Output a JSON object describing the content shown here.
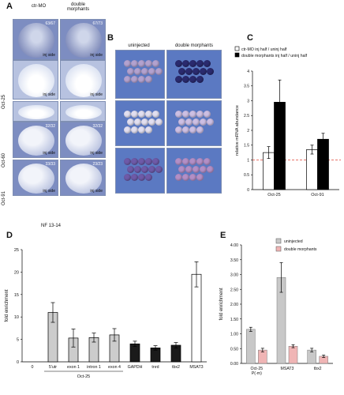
{
  "panelA": {
    "letter": "A",
    "col_headers": [
      "ctr-MO",
      "double\nmorphants"
    ],
    "rows": [
      {
        "label": "",
        "tags": [
          "inj side",
          "inj side"
        ],
        "counts": [
          "63/67",
          "67/73"
        ]
      },
      {
        "label": "Oct-25",
        "tags": [
          "inj side",
          "inj side"
        ],
        "counts": [
          "",
          ""
        ]
      },
      {
        "label": "",
        "tags": [
          "",
          ""
        ],
        "counts": [
          "",
          ""
        ]
      },
      {
        "label": "Oct-60",
        "tags": [
          "inj side",
          "inj side"
        ],
        "counts": [
          "32/32",
          "32/32"
        ]
      },
      {
        "label": "Oct-91",
        "tags": [
          "inj side",
          "inj side"
        ],
        "counts": [
          "33/33",
          "23/23"
        ]
      }
    ],
    "stage": "NF 13-14"
  },
  "panelB": {
    "letter": "B",
    "col_headers": [
      "uninjected",
      "double morphants"
    ],
    "row_labels": [
      "Oct-25",
      "Oct-60",
      "Oct-91"
    ]
  },
  "panelC": {
    "letter": "C",
    "legend": [
      "ctr-MO inj half / uninj half",
      "double morphants inj half / uninj half"
    ]
  },
  "panelD": {
    "letter": "D"
  },
  "panelE": {
    "letter": "E"
  },
  "chart_data": [
    {
      "type": "bar",
      "title": "",
      "xlabel": "",
      "ylabel": "relative mRNA abundance",
      "ylim": [
        0,
        4
      ],
      "yticks": [
        "4",
        "3.5",
        "3",
        "2.5",
        "2",
        "1.5",
        "1",
        "0.5",
        "0"
      ],
      "categories": [
        "Oct-25",
        "Oct-91"
      ],
      "series": [
        {
          "name": "ctr-MO inj half / uninj half",
          "values": [
            1.25,
            1.35
          ],
          "errors": [
            0.2,
            0.15
          ],
          "color": "#ffffff"
        },
        {
          "name": "double morphants inj half / uninj half",
          "values": [
            2.95,
            1.7
          ],
          "errors": [
            0.75,
            0.2
          ],
          "color": "#000000"
        }
      ],
      "reference_line": 1.0
    },
    {
      "type": "bar",
      "title": "",
      "xlabel": "",
      "ylabel": "fold enrichment",
      "ylim": [
        0,
        25
      ],
      "yticks": [
        "25",
        "20",
        "15",
        "10",
        "5",
        "0"
      ],
      "categories": [
        "0",
        "5'utr",
        "exon 1",
        "intron 1",
        "exon 4",
        "GAPDH",
        "tnrd",
        "tbx2",
        "MSAT3"
      ],
      "group_label": "Oct-25",
      "values": [
        null,
        11.0,
        5.3,
        5.4,
        6.0,
        4.0,
        3.1,
        3.7,
        19.5
      ],
      "errors": [
        null,
        2.2,
        2.0,
        1.0,
        1.4,
        0.6,
        0.5,
        0.6,
        2.8
      ],
      "colors": [
        "",
        "#cccccc",
        "#cccccc",
        "#cccccc",
        "#cccccc",
        "#1a1a1a",
        "#1a1a1a",
        "#1a1a1a",
        "#ffffff"
      ]
    },
    {
      "type": "bar",
      "title": "",
      "xlabel": "",
      "ylabel": "fold enrichment",
      "ylim": [
        0,
        4
      ],
      "yticks": [
        "4.00",
        "3.50",
        "3.00",
        "2.50",
        "2.00",
        "1.50",
        "1.00",
        "0.50",
        "0.00"
      ],
      "categories": [
        "Oct-25\nP(-m)",
        "MSAT3",
        "tbx2"
      ],
      "series": [
        {
          "name": "uninjected",
          "values": [
            1.15,
            2.9,
            0.45
          ],
          "errors": [
            0.07,
            0.5,
            0.06
          ],
          "color": "#c8c8c8"
        },
        {
          "name": "double morphants",
          "values": [
            0.45,
            0.58,
            0.24
          ],
          "errors": [
            0.06,
            0.05,
            0.04
          ],
          "color": "#f0b5b5"
        }
      ]
    }
  ]
}
